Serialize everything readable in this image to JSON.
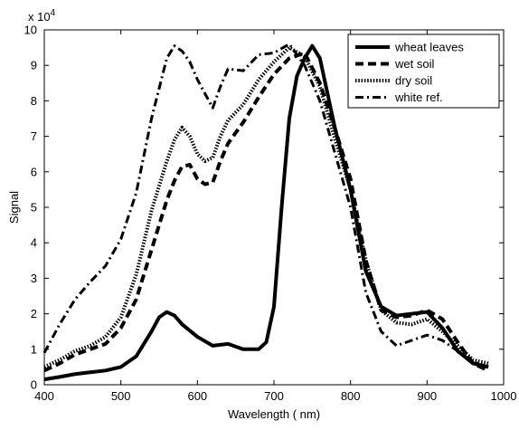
{
  "chart_data": {
    "type": "line",
    "title": "",
    "xlabel": "Wavelength ( nm)",
    "ylabel": "Signal",
    "xlim": [
      400,
      1000
    ],
    "ylim": [
      0,
      100000
    ],
    "y_multiplier_label": {
      "base": "x 10",
      "exp": "4"
    },
    "x_ticks": [
      400,
      500,
      600,
      700,
      800,
      900,
      1000
    ],
    "y_ticks": [
      0,
      10000,
      20000,
      30000,
      40000,
      50000,
      60000,
      70000,
      80000,
      90000,
      100000
    ],
    "x_tick_labels": [
      "400",
      "500",
      "600",
      "700",
      "800",
      "900",
      "1000"
    ],
    "y_tick_labels": [
      "0",
      "1",
      "2",
      "3",
      "4",
      "5",
      "6",
      "7",
      "8",
      "9",
      "10"
    ],
    "grid": false,
    "legend_position": "top-right",
    "series": [
      {
        "name": "wheat leaves",
        "style": "solid",
        "x": [
          400,
          420,
          440,
          460,
          480,
          500,
          520,
          540,
          550,
          560,
          570,
          580,
          600,
          620,
          640,
          660,
          680,
          690,
          700,
          710,
          720,
          730,
          740,
          750,
          760,
          770,
          780,
          800,
          820,
          840,
          860,
          880,
          900,
          920,
          940,
          960,
          980
        ],
        "y": [
          1500,
          2200,
          3000,
          3500,
          4000,
          5000,
          8000,
          15000,
          19000,
          20500,
          19500,
          17000,
          13500,
          11000,
          11500,
          10000,
          10000,
          12000,
          22000,
          50000,
          75000,
          87000,
          92000,
          95500,
          92000,
          82000,
          72000,
          55000,
          32000,
          22000,
          19500,
          20000,
          20500,
          16000,
          9500,
          6000,
          5000
        ]
      },
      {
        "name": "wet soil",
        "style": "dashed",
        "x": [
          400,
          420,
          440,
          460,
          480,
          500,
          520,
          540,
          560,
          570,
          580,
          590,
          600,
          610,
          620,
          630,
          640,
          660,
          680,
          700,
          720,
          740,
          760,
          780,
          800,
          820,
          840,
          860,
          880,
          900,
          920,
          940,
          960,
          980
        ],
        "y": [
          4000,
          6000,
          8500,
          10000,
          11500,
          16000,
          24000,
          38000,
          52000,
          57500,
          61500,
          62000,
          58000,
          56500,
          57000,
          63000,
          68000,
          74000,
          81000,
          87500,
          92000,
          93500,
          85000,
          72000,
          58000,
          35000,
          21000,
          19000,
          19500,
          21000,
          18500,
          12000,
          6000,
          4000
        ]
      },
      {
        "name": "dry soil",
        "style": "dotted",
        "x": [
          400,
          420,
          440,
          460,
          480,
          500,
          520,
          540,
          560,
          570,
          580,
          590,
          600,
          610,
          620,
          630,
          640,
          660,
          680,
          700,
          720,
          740,
          760,
          780,
          800,
          820,
          840,
          860,
          880,
          900,
          920,
          940,
          960,
          980
        ],
        "y": [
          5000,
          7000,
          9500,
          11000,
          13500,
          19000,
          31000,
          49000,
          63000,
          69000,
          72500,
          70000,
          65000,
          63000,
          64000,
          70000,
          74500,
          79000,
          86000,
          91000,
          95000,
          92500,
          84000,
          69000,
          55000,
          35000,
          21000,
          17500,
          17000,
          18500,
          15000,
          11000,
          7000,
          6000
        ]
      },
      {
        "name": "white ref.",
        "style": "dashdot",
        "x": [
          400,
          420,
          440,
          460,
          480,
          500,
          520,
          540,
          560,
          570,
          580,
          590,
          600,
          620,
          630,
          640,
          660,
          680,
          700,
          720,
          740,
          760,
          780,
          800,
          820,
          840,
          860,
          880,
          900,
          920,
          940,
          960,
          980
        ],
        "y": [
          9000,
          17000,
          24000,
          29000,
          33500,
          41000,
          54000,
          75000,
          92000,
          95500,
          94000,
          91000,
          86000,
          78000,
          84000,
          89000,
          88500,
          93000,
          93500,
          96000,
          90000,
          80000,
          65000,
          50000,
          26000,
          15000,
          11000,
          12500,
          14000,
          12500,
          9500,
          6500,
          5000
        ]
      }
    ]
  }
}
